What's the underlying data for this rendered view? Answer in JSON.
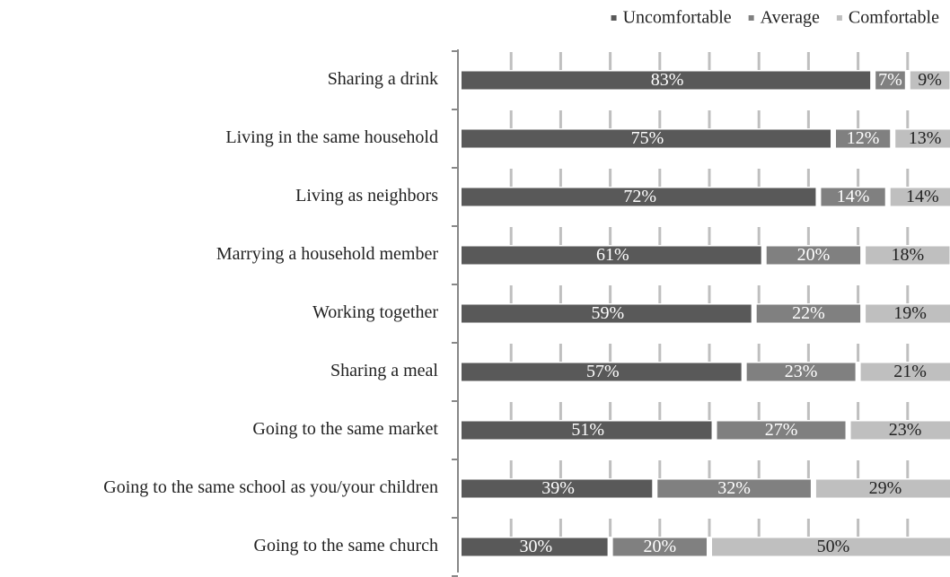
{
  "chart_data": {
    "type": "stacked_barh",
    "categories": [
      "Sharing a drink",
      "Living in the same household",
      "Living as neighbors",
      "Marrying a household member",
      "Working together",
      "Sharing a meal",
      "Going to the same market",
      "Going to the same school as you/your children",
      "Going to the same church"
    ],
    "series": [
      {
        "name": "Uncomfortable",
        "color": "#595959",
        "values": [
          83,
          75,
          72,
          61,
          59,
          57,
          51,
          39,
          30
        ],
        "value_labels": [
          "83%",
          "75%",
          "72%",
          "61%",
          "59%",
          "57%",
          "51%",
          "39%",
          "30%"
        ]
      },
      {
        "name": "Average",
        "color": "#808080",
        "values": [
          7,
          12,
          14,
          20,
          22,
          23,
          27,
          32,
          20
        ],
        "value_labels": [
          "7%",
          "12%",
          "14%",
          "20%",
          "22%",
          "23%",
          "27%",
          "32%",
          "20%"
        ]
      },
      {
        "name": "Comfortable",
        "color": "#bfbfbf",
        "values": [
          9,
          13,
          14,
          18,
          19,
          21,
          23,
          29,
          50
        ],
        "value_labels": [
          "9%",
          "13%",
          "14%",
          "18%",
          "19%",
          "21%",
          "23%",
          "29%",
          "50%"
        ]
      }
    ],
    "xlim": [
      0,
      100
    ],
    "xticks": [
      10,
      20,
      30,
      40,
      50,
      60,
      70,
      80,
      90
    ],
    "grid": true,
    "legend": "top-right"
  }
}
